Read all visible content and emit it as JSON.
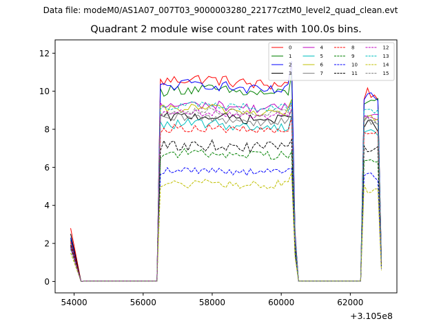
{
  "suptitle": "Data file: modeM0/AS1A07_007T03_9000003280_22177cztM0_level2_quad_clean.evt",
  "chart_data": {
    "type": "line",
    "title": "Quadrant 2 module wise count rates with 100.0s bins.",
    "xlabel": "",
    "ylabel": "",
    "x_offset_label": "+3.105e8",
    "xlim": [
      53450,
      63350
    ],
    "ylim": [
      -0.6,
      12.7
    ],
    "xticks": [
      54000,
      56000,
      58000,
      60000,
      62000
    ],
    "xtick_labels": [
      "54000",
      "56000",
      "58000",
      "60000",
      "62000"
    ],
    "yticks": [
      0,
      2,
      4,
      6,
      8,
      10,
      12
    ],
    "ytick_labels": [
      "0",
      "2",
      "4",
      "6",
      "8",
      "10",
      "12"
    ],
    "segments": [
      {
        "start": 53900,
        "end": 54200,
        "count": 4
      },
      {
        "start": 54300,
        "end": 56400,
        "count": 22
      },
      {
        "start": 56500,
        "end": 60400,
        "count": 40
      },
      {
        "start": 60500,
        "end": 62300,
        "count": 19
      },
      {
        "start": 62400,
        "end": 62900,
        "count": 6
      }
    ],
    "legend": {
      "location": "upper right",
      "columns": 4
    },
    "series": [
      {
        "name": "0",
        "color": "#ff0000",
        "dash": "solid",
        "levels": [
          2.8,
          0.0,
          10.5,
          0.0,
          9.8
        ],
        "pre_step": 1.0,
        "noise": 0.3,
        "ramp": 0.15
      },
      {
        "name": "1",
        "color": "#008000",
        "dash": "solid",
        "levels": [
          2.2,
          0.0,
          10.0,
          0.0,
          9.5
        ],
        "pre_step": 0.8,
        "noise": 0.28,
        "ramp": 0.12
      },
      {
        "name": "2",
        "color": "#0000ff",
        "dash": "solid",
        "levels": [
          2.3,
          0.0,
          10.2,
          0.0,
          9.7
        ],
        "pre_step": 1.2,
        "noise": 0.28,
        "ramp": 0.18
      },
      {
        "name": "3",
        "color": "#000000",
        "dash": "solid",
        "levels": [
          2.5,
          0.0,
          8.6,
          0.0,
          8.2
        ],
        "pre_step": 0.3,
        "noise": 0.25,
        "ramp": 0.1
      },
      {
        "name": "4",
        "color": "#bf00bf",
        "dash": "solid",
        "levels": [
          2.0,
          0.0,
          9.2,
          0.0,
          8.8
        ],
        "pre_step": 0.4,
        "noise": 0.25,
        "ramp": 0.1
      },
      {
        "name": "5",
        "color": "#00bfbf",
        "dash": "solid",
        "levels": [
          1.9,
          0.0,
          8.2,
          0.0,
          7.9
        ],
        "pre_step": 0.6,
        "noise": 0.25,
        "ramp": 0.1
      },
      {
        "name": "6",
        "color": "#bfbf00",
        "dash": "solid",
        "levels": [
          1.8,
          0.0,
          9.0,
          0.0,
          8.5
        ],
        "pre_step": 0.6,
        "noise": 0.25,
        "ramp": 0.12
      },
      {
        "name": "7",
        "color": "#808080",
        "dash": "solid",
        "levels": [
          2.0,
          0.0,
          8.5,
          0.0,
          8.4
        ],
        "pre_step": 0.5,
        "noise": 0.25,
        "ramp": 0.1
      },
      {
        "name": "8",
        "color": "#ff0000",
        "dash": "dashed",
        "levels": [
          2.1,
          0.0,
          8.0,
          0.0,
          7.8
        ],
        "pre_step": 0.5,
        "noise": 0.22,
        "ramp": 0.08
      },
      {
        "name": "9",
        "color": "#008000",
        "dash": "dashed",
        "levels": [
          1.8,
          0.0,
          6.7,
          0.0,
          6.3
        ],
        "pre_step": 0.4,
        "noise": 0.25,
        "ramp": 0.05
      },
      {
        "name": "10",
        "color": "#0000ff",
        "dash": "dashed",
        "levels": [
          1.7,
          0.0,
          5.8,
          0.0,
          5.5
        ],
        "pre_step": 0.3,
        "noise": 0.2,
        "ramp": 0.05
      },
      {
        "name": "11",
        "color": "#000000",
        "dash": "dashed",
        "levels": [
          1.9,
          0.0,
          7.1,
          0.0,
          7.0
        ],
        "pre_step": 0.5,
        "noise": 0.3,
        "ramp": 0.05
      },
      {
        "name": "12",
        "color": "#bf00bf",
        "dash": "dashed",
        "levels": [
          1.8,
          0.0,
          8.8,
          0.0,
          8.6
        ],
        "pre_step": 0.3,
        "noise": 0.2,
        "ramp": 0.05
      },
      {
        "name": "13",
        "color": "#00bfbf",
        "dash": "dashed",
        "levels": [
          1.7,
          0.0,
          9.2,
          0.0,
          8.9
        ],
        "pre_step": 0.3,
        "noise": 0.22,
        "ramp": 0.06
      },
      {
        "name": "14",
        "color": "#bfbf00",
        "dash": "dashed",
        "levels": [
          1.5,
          0.0,
          5.1,
          0.0,
          4.9
        ],
        "pre_step": 0.5,
        "noise": 0.25,
        "ramp": 0.02
      },
      {
        "name": "15",
        "color": "#808080",
        "dash": "dashed",
        "levels": [
          1.7,
          0.0,
          8.9,
          0.0,
          8.5
        ],
        "pre_step": 0.3,
        "noise": 0.2,
        "ramp": 0.06
      }
    ]
  }
}
